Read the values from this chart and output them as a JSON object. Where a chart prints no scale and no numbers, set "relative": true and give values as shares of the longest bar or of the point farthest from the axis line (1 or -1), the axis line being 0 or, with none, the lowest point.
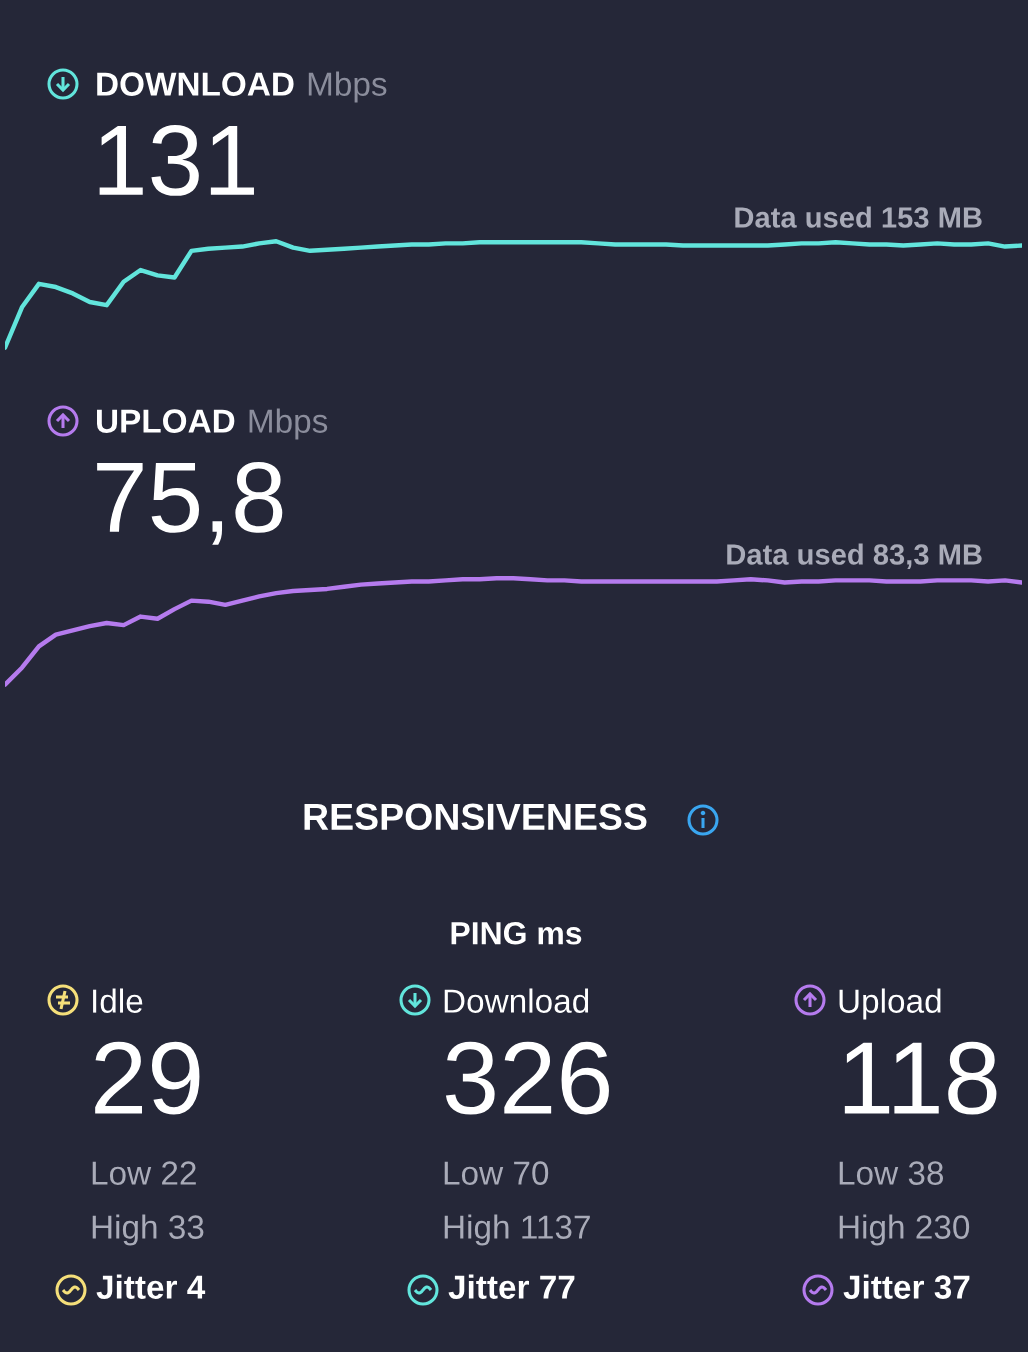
{
  "chart_data": [
    {
      "type": "line",
      "title": "DOWNLOAD",
      "subtitle": "Mbps",
      "relative": true,
      "marker": "none",
      "line_style": "solid",
      "annotations": [
        "131",
        "Data used 153 MB"
      ],
      "categories": [
        null,
        null,
        null,
        null,
        null,
        null,
        null,
        null,
        null,
        null,
        null,
        null,
        null,
        null,
        null,
        null,
        null,
        null,
        null,
        null,
        null,
        null,
        null,
        null,
        null,
        null,
        null,
        null,
        null,
        null,
        null,
        null,
        null,
        null,
        null,
        null,
        null,
        null,
        null,
        null,
        null,
        null,
        null,
        null,
        null,
        null,
        null,
        null,
        null,
        null,
        null,
        null,
        null,
        null,
        null,
        null,
        null,
        null,
        null,
        null,
        null
      ],
      "series": [
        {
          "color": "#62e5dc",
          "values": [
            0,
            0.38,
            0.6,
            0.57,
            0.51,
            0.43,
            0.4,
            0.62,
            0.73,
            0.68,
            0.66,
            0.91,
            0.93,
            0.94,
            0.95,
            0.98,
            1.0,
            0.94,
            0.91,
            0.92,
            0.93,
            0.94,
            0.95,
            0.96,
            0.97,
            0.97,
            0.98,
            0.98,
            0.99,
            0.99,
            0.99,
            0.99,
            0.99,
            0.99,
            0.99,
            0.98,
            0.97,
            0.97,
            0.97,
            0.97,
            0.96,
            0.96,
            0.96,
            0.96,
            0.96,
            0.96,
            0.97,
            0.98,
            0.98,
            0.99,
            0.98,
            0.97,
            0.97,
            0.96,
            0.97,
            0.98,
            0.97,
            0.97,
            0.98,
            0.95,
            0.96
          ]
        }
      ]
    },
    {
      "type": "line",
      "title": "UPLOAD",
      "subtitle": "Mbps",
      "relative": true,
      "marker": "none",
      "line_style": "solid",
      "annotations": [
        "75,8",
        "Data used 83,3 MB"
      ],
      "categories": [
        null,
        null,
        null,
        null,
        null,
        null,
        null,
        null,
        null,
        null,
        null,
        null,
        null,
        null,
        null,
        null,
        null,
        null,
        null,
        null,
        null,
        null,
        null,
        null,
        null,
        null,
        null,
        null,
        null,
        null,
        null,
        null,
        null,
        null,
        null,
        null,
        null,
        null,
        null,
        null,
        null,
        null,
        null,
        null,
        null,
        null,
        null,
        null,
        null,
        null,
        null,
        null,
        null,
        null,
        null,
        null,
        null,
        null,
        null,
        null,
        null
      ],
      "series": [
        {
          "color": "#b57bee",
          "values": [
            0,
            0.16,
            0.36,
            0.47,
            0.51,
            0.55,
            0.58,
            0.56,
            0.64,
            0.62,
            0.71,
            0.79,
            0.78,
            0.75,
            0.79,
            0.83,
            0.86,
            0.88,
            0.89,
            0.9,
            0.92,
            0.94,
            0.95,
            0.96,
            0.97,
            0.97,
            0.98,
            0.99,
            0.99,
            1.0,
            1.0,
            0.99,
            0.98,
            0.98,
            0.97,
            0.97,
            0.97,
            0.97,
            0.97,
            0.97,
            0.97,
            0.97,
            0.97,
            0.98,
            0.99,
            0.98,
            0.96,
            0.97,
            0.97,
            0.98,
            0.98,
            0.98,
            0.97,
            0.97,
            0.97,
            0.98,
            0.98,
            0.98,
            0.97,
            0.98,
            0.96
          ]
        }
      ]
    },
    {
      "type": "other",
      "title": "RESPONSIVENESS",
      "subtitle": "PING ms",
      "annotations": [
        "Idle",
        "29",
        "Low 22",
        "High 33",
        "Jitter 4",
        "Download",
        "326",
        "Low 70",
        "High 1137",
        "Jitter 77",
        "Upload",
        "118",
        "Low 38",
        "High 230",
        "Jitter 37"
      ]
    }
  ]
}
